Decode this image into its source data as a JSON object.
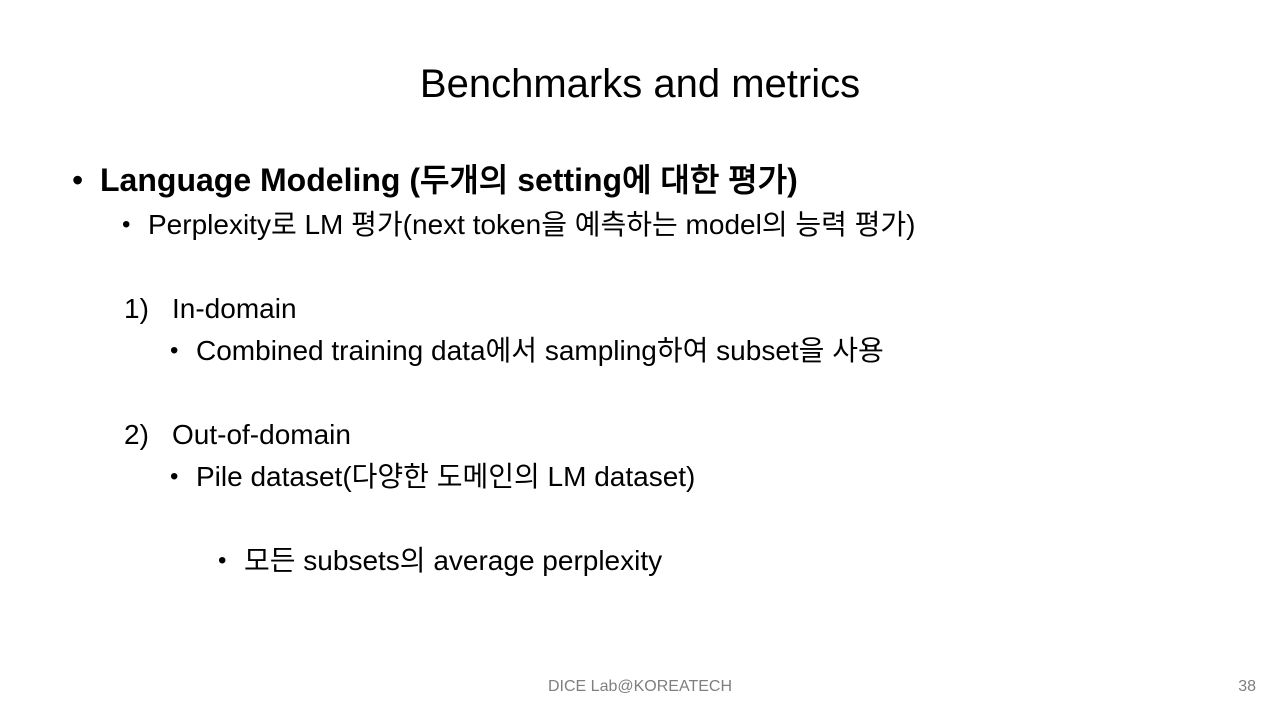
{
  "slide": {
    "title": "Benchmarks and metrics",
    "bullet_char": "•",
    "heading": "Language Modeling (두개의 setting에 대한 평가)",
    "perplexity_line": "Perplexity로 LM 평가(next token을 예측하는 model의 능력 평가)",
    "items": [
      {
        "number": "1)",
        "label": "In-domain",
        "detail": "Combined training data에서 sampling하여 subset을 사용"
      },
      {
        "number": "2)",
        "label": "Out-of-domain",
        "detail": "Pile dataset(다양한 도메인의 LM dataset)"
      }
    ],
    "sub_detail": "모든 subsets의 average perplexity"
  },
  "footer": {
    "center_text": "DICE Lab@KOREATECH",
    "page_number": "38"
  }
}
